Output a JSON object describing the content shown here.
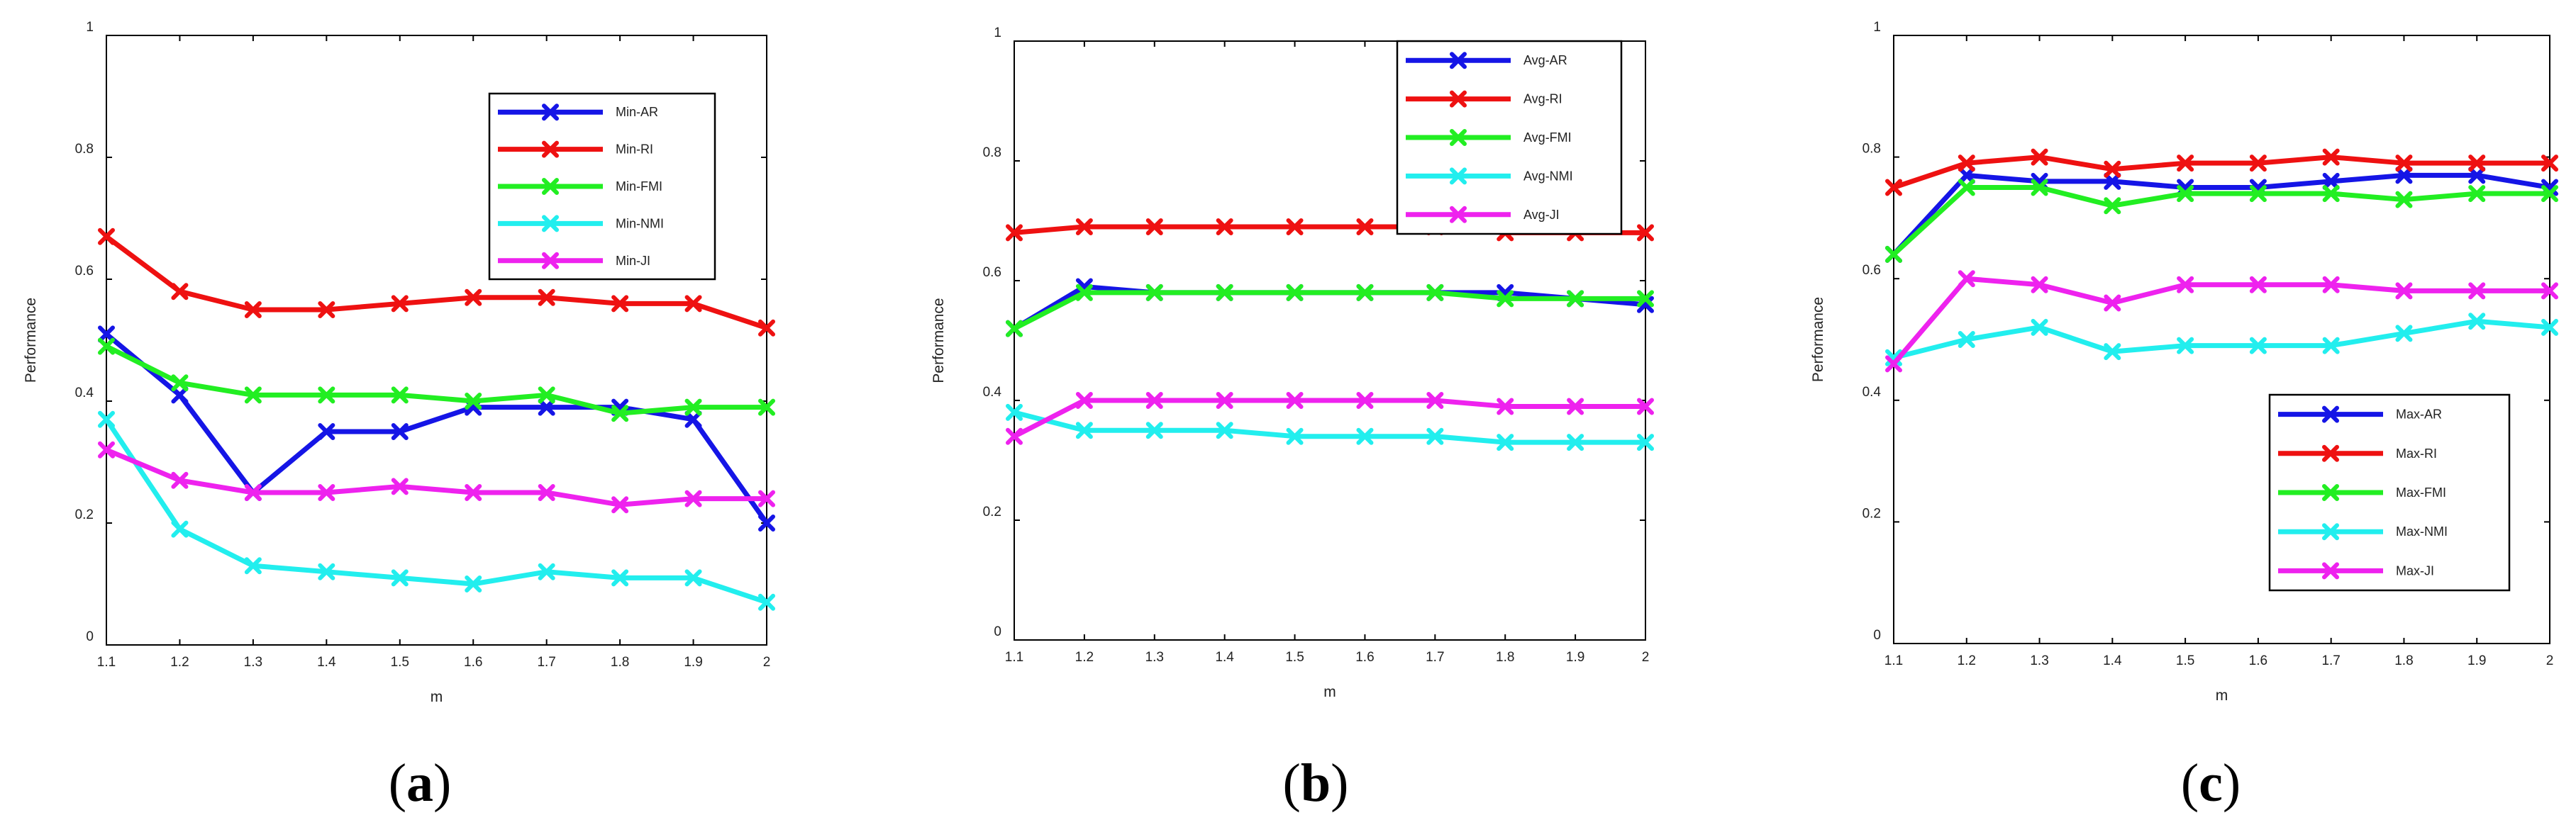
{
  "colors": {
    "AR": "#1515e6",
    "RI": "#ee1111",
    "FMI": "#22ee22",
    "NMI": "#22eeee",
    "JI": "#ee22ee"
  },
  "chart_data": [
    {
      "type": "line",
      "panel_label": "a",
      "xlabel": "m",
      "ylabel": "Performance",
      "xlim": [
        1.1,
        2
      ],
      "ylim": [
        0,
        1
      ],
      "x_ticks": [
        "1.1",
        "1.2",
        "1.3",
        "1.4",
        "1.5",
        "1.6",
        "1.7",
        "1.8",
        "1.9",
        "2"
      ],
      "y_ticks": [
        "0",
        "0.2",
        "0.4",
        "0.6",
        "0.8",
        "1"
      ],
      "legend_position": "top-right",
      "x": [
        1.1,
        1.2,
        1.3,
        1.4,
        1.5,
        1.6,
        1.7,
        1.8,
        1.9,
        2.0
      ],
      "series": [
        {
          "name": "Min-AR",
          "key": "AR",
          "values": [
            0.51,
            0.41,
            0.25,
            0.35,
            0.35,
            0.39,
            0.39,
            0.39,
            0.37,
            0.2
          ]
        },
        {
          "name": "Min-RI",
          "key": "RI",
          "values": [
            0.67,
            0.58,
            0.55,
            0.55,
            0.56,
            0.57,
            0.57,
            0.56,
            0.56,
            0.52
          ]
        },
        {
          "name": "Min-FMI",
          "key": "FMI",
          "values": [
            0.49,
            0.43,
            0.41,
            0.41,
            0.41,
            0.4,
            0.41,
            0.38,
            0.39,
            0.39
          ]
        },
        {
          "name": "Min-NMI",
          "key": "NMI",
          "values": [
            0.37,
            0.19,
            0.13,
            0.12,
            0.11,
            0.1,
            0.12,
            0.11,
            0.11,
            0.07
          ]
        },
        {
          "name": "Min-JI",
          "key": "JI",
          "values": [
            0.32,
            0.27,
            0.25,
            0.25,
            0.26,
            0.25,
            0.25,
            0.23,
            0.24,
            0.24
          ]
        }
      ]
    },
    {
      "type": "line",
      "panel_label": "b",
      "xlabel": "m",
      "ylabel": "Performance",
      "xlim": [
        1.1,
        2
      ],
      "ylim": [
        0,
        1
      ],
      "x_ticks": [
        "1.1",
        "1.2",
        "1.3",
        "1.4",
        "1.5",
        "1.6",
        "1.7",
        "1.8",
        "1.9",
        "2"
      ],
      "y_ticks": [
        "0",
        "0.2",
        "0.4",
        "0.6",
        "0.8",
        "1"
      ],
      "legend_position": "top-right",
      "x": [
        1.1,
        1.2,
        1.3,
        1.4,
        1.5,
        1.6,
        1.7,
        1.8,
        1.9,
        2.0
      ],
      "series": [
        {
          "name": "Avg-AR",
          "key": "AR",
          "values": [
            0.52,
            0.59,
            0.58,
            0.58,
            0.58,
            0.58,
            0.58,
            0.58,
            0.57,
            0.56
          ]
        },
        {
          "name": "Avg-RI",
          "key": "RI",
          "values": [
            0.68,
            0.69,
            0.69,
            0.69,
            0.69,
            0.69,
            0.69,
            0.68,
            0.68,
            0.68
          ]
        },
        {
          "name": "Avg-FMI",
          "key": "FMI",
          "values": [
            0.52,
            0.58,
            0.58,
            0.58,
            0.58,
            0.58,
            0.58,
            0.57,
            0.57,
            0.57
          ]
        },
        {
          "name": "Avg-NMI",
          "key": "NMI",
          "values": [
            0.38,
            0.35,
            0.35,
            0.35,
            0.34,
            0.34,
            0.34,
            0.33,
            0.33,
            0.33
          ]
        },
        {
          "name": "Avg-JI",
          "key": "JI",
          "values": [
            0.34,
            0.4,
            0.4,
            0.4,
            0.4,
            0.4,
            0.4,
            0.39,
            0.39,
            0.39
          ]
        }
      ]
    },
    {
      "type": "line",
      "panel_label": "c",
      "xlabel": "m",
      "ylabel": "Performance",
      "xlim": [
        1.1,
        2
      ],
      "ylim": [
        0,
        1
      ],
      "x_ticks": [
        "1.1",
        "1.2",
        "1.3",
        "1.4",
        "1.5",
        "1.6",
        "1.7",
        "1.8",
        "1.9",
        "2"
      ],
      "y_ticks": [
        "0",
        "0.2",
        "0.4",
        "0.6",
        "0.8",
        "1"
      ],
      "legend_position": "bottom-right",
      "x": [
        1.1,
        1.2,
        1.3,
        1.4,
        1.5,
        1.6,
        1.7,
        1.8,
        1.9,
        2.0
      ],
      "series": [
        {
          "name": "Max-AR",
          "key": "AR",
          "values": [
            0.64,
            0.77,
            0.76,
            0.76,
            0.75,
            0.75,
            0.76,
            0.77,
            0.77,
            0.75
          ]
        },
        {
          "name": "Max-RI",
          "key": "RI",
          "values": [
            0.75,
            0.79,
            0.8,
            0.78,
            0.79,
            0.79,
            0.8,
            0.79,
            0.79,
            0.79
          ]
        },
        {
          "name": "Max-FMI",
          "key": "FMI",
          "values": [
            0.64,
            0.75,
            0.75,
            0.72,
            0.74,
            0.74,
            0.74,
            0.73,
            0.74,
            0.74
          ]
        },
        {
          "name": "Max-NMI",
          "key": "NMI",
          "values": [
            0.47,
            0.5,
            0.52,
            0.48,
            0.49,
            0.49,
            0.49,
            0.51,
            0.53,
            0.52
          ]
        },
        {
          "name": "Max-JI",
          "key": "JI",
          "values": [
            0.46,
            0.6,
            0.59,
            0.56,
            0.59,
            0.59,
            0.59,
            0.58,
            0.58,
            0.58
          ]
        }
      ]
    }
  ]
}
